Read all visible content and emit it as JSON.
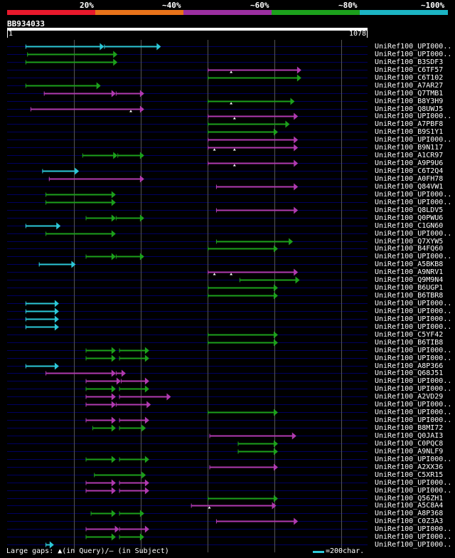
{
  "legend": {
    "labels": [
      "20%",
      "~40%",
      "~60%",
      "~80%",
      "~100%"
    ],
    "colors": [
      "#e8192c",
      "#e8731a",
      "#9b2fa0",
      "#1ca01c",
      "#1cb4c4"
    ]
  },
  "query": {
    "id": "BB934033",
    "length": 1078,
    "start_label": "1",
    "end_label": "1078"
  },
  "colors": {
    "red": "#e8192c",
    "orange": "#e8731a",
    "purple": "#b03ab0",
    "green": "#1ca01c",
    "cyan": "#2cc8d8",
    "track": "#000060",
    "grid": "#555555",
    "gap_mark": "#ffffff"
  },
  "footer": {
    "gaps_text": "Large gaps: ▲(in Query)/– (in Subject)",
    "scale_text": "=200char."
  },
  "hits": [
    {
      "id": "UniRef100_UPI000..",
      "color": "cyan",
      "segs": [
        [
          55,
          290
        ],
        [
          290,
          460
        ]
      ]
    },
    {
      "id": "UniRef100_UPI000..",
      "color": "green",
      "segs": [
        [
          60,
          330
        ]
      ]
    },
    {
      "id": "UniRef100_B3SDF3",
      "color": "green",
      "segs": [
        [
          55,
          330
        ]
      ]
    },
    {
      "id": "UniRef100_C6TF57",
      "color": "purple",
      "segs": [
        [
          600,
          880
        ]
      ],
      "gaps": [
        670
      ]
    },
    {
      "id": "UniRef100_C6T102",
      "color": "green",
      "segs": [
        [
          600,
          880
        ]
      ]
    },
    {
      "id": "UniRef100_A7AR27",
      "color": "green",
      "segs": [
        [
          55,
          280
        ]
      ]
    },
    {
      "id": "UniRef100_Q7TMB1",
      "color": "purple",
      "segs": [
        [
          110,
          325
        ],
        [
          325,
          410
        ]
      ]
    },
    {
      "id": "UniRef100_B8Y3H9",
      "color": "green",
      "segs": [
        [
          600,
          860
        ]
      ],
      "gaps": [
        670
      ]
    },
    {
      "id": "UniRef100_Q8UWJ5",
      "color": "purple",
      "segs": [
        [
          70,
          410
        ]
      ],
      "gaps": [
        370
      ]
    },
    {
      "id": "UniRef100_UPI000..",
      "color": "purple",
      "segs": [
        [
          600,
          870
        ]
      ],
      "gaps": [
        680
      ]
    },
    {
      "id": "UniRef100_A7PBF8",
      "color": "green",
      "segs": [
        [
          600,
          845
        ]
      ]
    },
    {
      "id": "UniRef100_B9S1Y1",
      "color": "green",
      "segs": [
        [
          600,
          810
        ]
      ]
    },
    {
      "id": "UniRef100_UPI000..",
      "color": "purple",
      "segs": [
        [
          600,
          870
        ]
      ]
    },
    {
      "id": "UniRef100_B9N117",
      "color": "purple",
      "segs": [
        [
          600,
          870
        ]
      ],
      "gaps": [
        620,
        680
      ]
    },
    {
      "id": "UniRef100_A1CR97",
      "color": "green",
      "segs": [
        [
          225,
          330
        ],
        [
          330,
          410
        ]
      ]
    },
    {
      "id": "UniRef100_A9P9U6",
      "color": "purple",
      "segs": [
        [
          600,
          870
        ]
      ],
      "gaps": [
        680
      ]
    },
    {
      "id": "UniRef100_C6T2Q4",
      "color": "cyan",
      "segs": [
        [
          105,
          215
        ]
      ]
    },
    {
      "id": "UniRef100_A0FH78",
      "color": "purple",
      "segs": [
        [
          125,
          410
        ]
      ]
    },
    {
      "id": "UniRef100_Q84VW1",
      "color": "purple",
      "segs": [
        [
          625,
          870
        ]
      ]
    },
    {
      "id": "UniRef100_UPI000..",
      "color": "green",
      "segs": [
        [
          115,
          325
        ]
      ]
    },
    {
      "id": "UniRef100_UPI000..",
      "color": "green",
      "segs": [
        [
          115,
          325
        ]
      ]
    },
    {
      "id": "UniRef100_Q8LDV5",
      "color": "purple",
      "segs": [
        [
          625,
          870
        ]
      ]
    },
    {
      "id": "UniRef100_Q0PWU6",
      "color": "green",
      "segs": [
        [
          235,
          325
        ],
        [
          325,
          410
        ]
      ]
    },
    {
      "id": "UniRef100_C1GN60",
      "color": "cyan",
      "segs": [
        [
          55,
          160
        ]
      ]
    },
    {
      "id": "UniRef100_UPI000..",
      "color": "green",
      "segs": [
        [
          115,
          325
        ]
      ]
    },
    {
      "id": "UniRef100_Q7XYW5",
      "color": "green",
      "segs": [
        [
          625,
          855
        ]
      ]
    },
    {
      "id": "UniRef100_B4FQ60",
      "color": "green",
      "segs": [
        [
          600,
          810
        ]
      ]
    },
    {
      "id": "UniRef100_UPI000..",
      "color": "green",
      "segs": [
        [
          235,
          325
        ],
        [
          325,
          410
        ]
      ]
    },
    {
      "id": "UniRef100_A5BKB8",
      "color": "cyan",
      "segs": [
        [
          95,
          205
        ]
      ]
    },
    {
      "id": "UniRef100_A9NRV1",
      "color": "purple",
      "segs": [
        [
          600,
          870
        ]
      ],
      "gaps": [
        620,
        670
      ]
    },
    {
      "id": "UniRef100_Q9M9N4",
      "color": "green",
      "segs": [
        [
          695,
          875
        ]
      ]
    },
    {
      "id": "UniRef100_B6UGP1",
      "color": "green",
      "segs": [
        [
          600,
          810
        ]
      ]
    },
    {
      "id": "UniRef100_B6TBR8",
      "color": "green",
      "segs": [
        [
          600,
          810
        ]
      ]
    },
    {
      "id": "UniRef100_UPI000..",
      "color": "cyan",
      "segs": [
        [
          55,
          155
        ]
      ]
    },
    {
      "id": "UniRef100_UPI000..",
      "color": "cyan",
      "segs": [
        [
          55,
          155
        ]
      ]
    },
    {
      "id": "UniRef100_UPI000..",
      "color": "cyan",
      "segs": [
        [
          55,
          155
        ]
      ]
    },
    {
      "id": "UniRef100_UPI000..",
      "color": "cyan",
      "segs": [
        [
          55,
          155
        ]
      ]
    },
    {
      "id": "UniRef100_C5YF42",
      "color": "green",
      "segs": [
        [
          600,
          810
        ]
      ]
    },
    {
      "id": "UniRef100_B6TIB8",
      "color": "green",
      "segs": [
        [
          600,
          810
        ]
      ]
    },
    {
      "id": "UniRef100_UPI000..",
      "color": "green",
      "segs": [
        [
          235,
          325
        ],
        [
          335,
          425
        ]
      ]
    },
    {
      "id": "UniRef100_UPI000..",
      "color": "green",
      "segs": [
        [
          235,
          325
        ],
        [
          335,
          425
        ]
      ]
    },
    {
      "id": "UniRef100_A8P366",
      "color": "cyan",
      "segs": [
        [
          55,
          155
        ]
      ]
    },
    {
      "id": "UniRef100_Q68J51",
      "color": "purple",
      "segs": [
        [
          115,
          325
        ],
        [
          325,
          355
        ]
      ]
    },
    {
      "id": "UniRef100_UPI000..",
      "color": "purple",
      "segs": [
        [
          235,
          340
        ],
        [
          340,
          425
        ]
      ]
    },
    {
      "id": "UniRef100_UPI000..",
      "color": "green",
      "segs": [
        [
          235,
          325
        ],
        [
          335,
          425
        ]
      ]
    },
    {
      "id": "UniRef100_A2VD29",
      "color": "purple",
      "segs": [
        [
          235,
          325
        ],
        [
          335,
          490
        ]
      ]
    },
    {
      "id": "UniRef100_UPI000..",
      "color": "purple",
      "segs": [
        [
          235,
          325
        ],
        [
          325,
          430
        ]
      ]
    },
    {
      "id": "UniRef100_UPI000..",
      "color": "green",
      "segs": [
        [
          600,
          810
        ]
      ]
    },
    {
      "id": "UniRef100_UPI000..",
      "color": "purple",
      "segs": [
        [
          235,
          325
        ],
        [
          335,
          425
        ]
      ]
    },
    {
      "id": "UniRef100_B8MI72",
      "color": "green",
      "segs": [
        [
          255,
          325
        ],
        [
          335,
          415
        ]
      ]
    },
    {
      "id": "UniRef100_Q0JAI3",
      "color": "purple",
      "segs": [
        [
          605,
          865
        ]
      ]
    },
    {
      "id": "UniRef100_C0PQC8",
      "color": "green",
      "segs": [
        [
          690,
          810
        ]
      ]
    },
    {
      "id": "UniRef100_A9NLF9",
      "color": "green",
      "segs": [
        [
          690,
          810
        ]
      ]
    },
    {
      "id": "UniRef100_UPI000..",
      "color": "green",
      "segs": [
        [
          235,
          325
        ],
        [
          335,
          425
        ]
      ]
    },
    {
      "id": "UniRef100_A2XX36",
      "color": "purple",
      "segs": [
        [
          605,
          810
        ]
      ]
    },
    {
      "id": "UniRef100_C5XR15",
      "color": "green",
      "segs": [
        [
          260,
          415
        ]
      ]
    },
    {
      "id": "UniRef100_UPI000..",
      "color": "purple",
      "segs": [
        [
          235,
          325
        ],
        [
          335,
          425
        ]
      ]
    },
    {
      "id": "UniRef100_UPI000..",
      "color": "purple",
      "segs": [
        [
          235,
          325
        ],
        [
          335,
          425
        ]
      ]
    },
    {
      "id": "UniRef100_Q56ZH1",
      "color": "green",
      "segs": [
        [
          600,
          810
        ]
      ]
    },
    {
      "id": "UniRef100_A5C8A4",
      "color": "purple",
      "segs": [
        [
          550,
          805
        ]
      ],
      "gaps": [
        605
      ]
    },
    {
      "id": "UniRef100_A8P368",
      "color": "green",
      "segs": [
        [
          250,
          325
        ],
        [
          335,
          410
        ]
      ]
    },
    {
      "id": "UniRef100_C0Z3A3",
      "color": "purple",
      "segs": [
        [
          625,
          870
        ]
      ]
    },
    {
      "id": "UniRef100_UPI000..",
      "color": "purple",
      "segs": [
        [
          235,
          335
        ],
        [
          335,
          425
        ]
      ]
    },
    {
      "id": "UniRef100_UPI000..",
      "color": "green",
      "segs": [
        [
          235,
          325
        ],
        [
          335,
          410
        ]
      ]
    },
    {
      "id": "UniRef100_UPI000..",
      "color": "cyan",
      "segs": [
        [
          115,
          140
        ]
      ]
    }
  ]
}
